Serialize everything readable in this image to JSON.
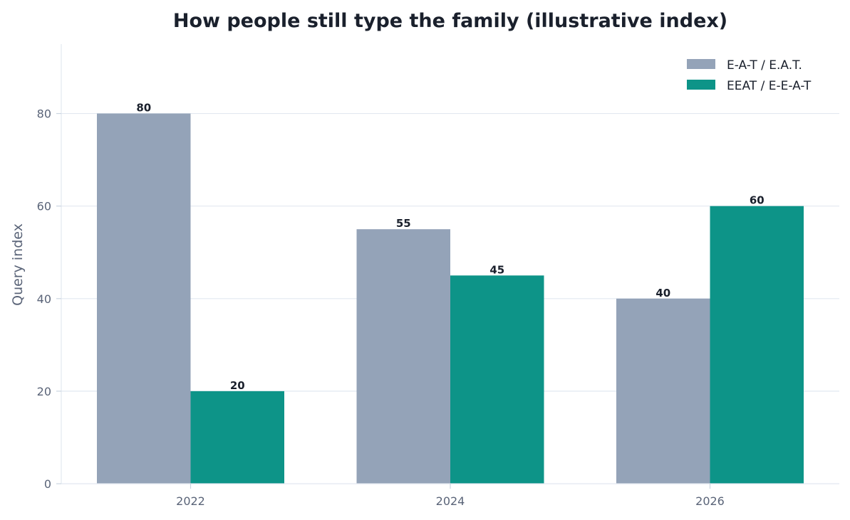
{
  "chart_data": {
    "type": "bar",
    "title": "How people still type the family (illustrative index)",
    "xlabel": "",
    "ylabel": "Query index",
    "categories": [
      "2022",
      "2024",
      "2026"
    ],
    "series": [
      {
        "name": "E-A-T / E.A.T.",
        "values": [
          80,
          55,
          40
        ],
        "color": "#94a3b8"
      },
      {
        "name": "EEAT / E-E-A-T",
        "values": [
          20,
          45,
          60
        ],
        "color": "#0d9488"
      }
    ],
    "ylim": [
      0,
      95
    ],
    "yticks": [
      0,
      20,
      40,
      60,
      80
    ],
    "grid": true,
    "legend_position": "top-right"
  }
}
